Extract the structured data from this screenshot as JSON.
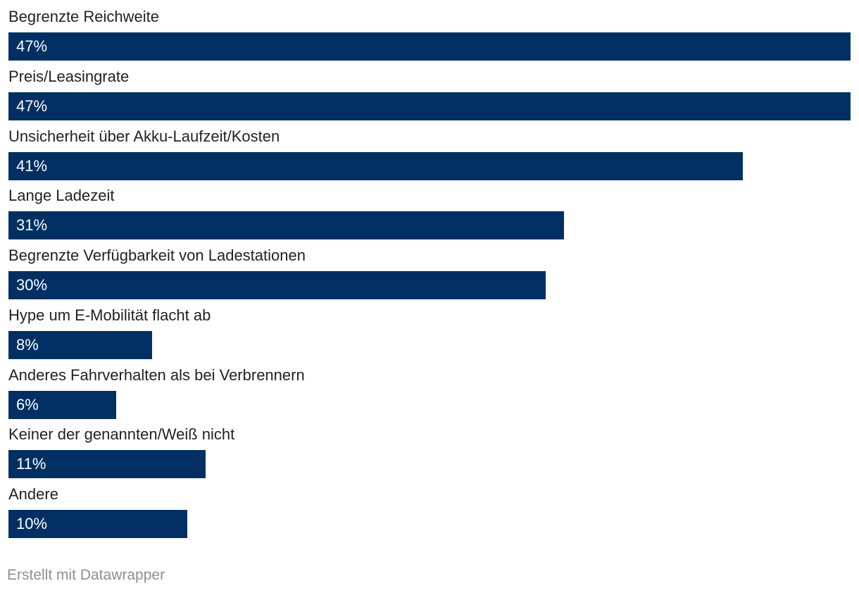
{
  "chart_data": {
    "type": "bar",
    "orientation": "horizontal",
    "categories": [
      "Begrenzte Reichweite",
      "Preis/Leasingrate",
      "Unsicherheit über Akku-Laufzeit/Kosten",
      "Lange Ladezeit",
      "Begrenzte Verfügbarkeit von Ladestationen",
      "Hype um E-Mobilität flacht ab",
      "Anderes Fahrverhalten als bei Verbrennern",
      "Keiner der genannten/Weiß nicht",
      "Andere"
    ],
    "values": [
      47,
      47,
      41,
      31,
      30,
      8,
      6,
      11,
      10
    ],
    "value_labels": [
      "47%",
      "47%",
      "41%",
      "31%",
      "30%",
      "8%",
      "6%",
      "11%",
      "10%"
    ],
    "unit": "%",
    "xlim": [
      0,
      47
    ],
    "grid": false,
    "bar_color": "#003063"
  },
  "footer": {
    "credit": "Erstellt mit Datawrapper"
  }
}
